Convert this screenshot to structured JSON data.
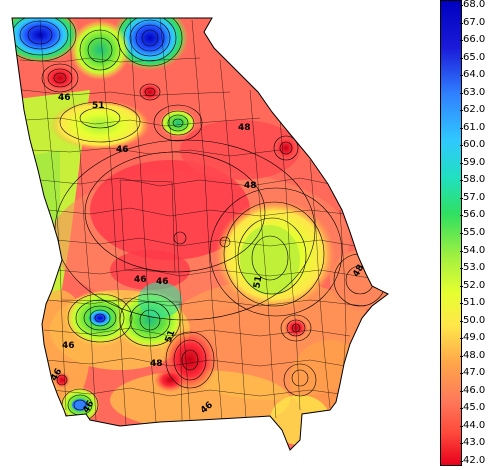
{
  "colorbar": {
    "ticks": [
      "68.0",
      "67.0",
      "66.0",
      "65.0",
      "64.0",
      "63.0",
      "62.0",
      "61.0",
      "60.0",
      "59.0",
      "58.0",
      "57.0",
      "56.0",
      "55.0",
      "54.0",
      "53.0",
      "52.0",
      "51.0",
      "50.0",
      "49.0",
      "48.0",
      "47.0",
      "46.0",
      "45.0",
      "44.0",
      "43.0",
      "42.0"
    ],
    "min": 42.0,
    "max": 68.0,
    "colors": [
      "#e8001c",
      "#ff4a3c",
      "#ff7a5a",
      "#ffa64a",
      "#ffe64a",
      "#e6ff30",
      "#a0f040",
      "#30e060",
      "#20e0c0",
      "#30c8ff",
      "#3080ff",
      "#1a1ad8",
      "#0000c0"
    ]
  },
  "contour_labels": [
    {
      "text": "46",
      "key": "a"
    },
    {
      "text": "51",
      "key": "b"
    },
    {
      "text": "46",
      "key": "c"
    },
    {
      "text": "48",
      "key": "d"
    },
    {
      "text": "48",
      "key": "e"
    },
    {
      "text": "51",
      "key": "f"
    },
    {
      "text": "46",
      "key": "g"
    },
    {
      "text": "46",
      "key": "h"
    },
    {
      "text": "48",
      "key": "i"
    },
    {
      "text": "48",
      "key": "j"
    },
    {
      "text": "46",
      "key": "k"
    },
    {
      "text": "51",
      "key": "l"
    },
    {
      "text": "46",
      "key": "m"
    },
    {
      "text": "46",
      "key": "n"
    },
    {
      "text": "46",
      "key": "o"
    }
  ]
}
